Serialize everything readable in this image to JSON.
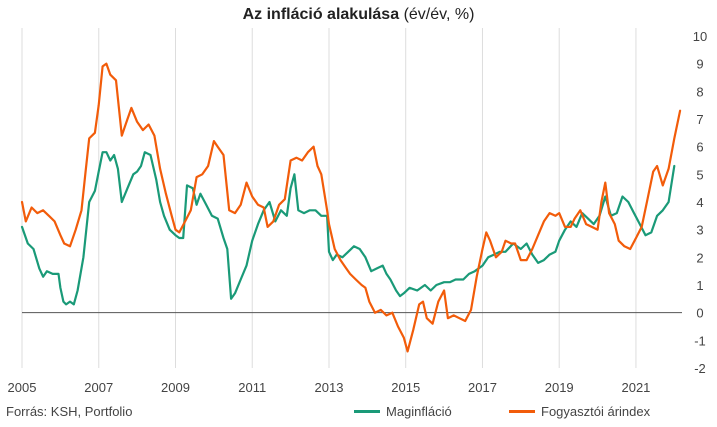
{
  "title": {
    "bold": "Az infláció alakulása",
    "rest": "(év/év, %)"
  },
  "source": "Forrás: KSH, Portfolio",
  "colors": {
    "core": "#1a9a78",
    "cpi": "#f25c0a",
    "zero_line": "#555555",
    "grid": "#dddddd"
  },
  "chart_data": {
    "type": "line",
    "title": "Az infláció alakulása (év/év, %)",
    "xlabel": "",
    "ylabel": "",
    "xlim": [
      2005,
      2022.2
    ],
    "ylim": [
      -2,
      10
    ],
    "x_ticks": [
      "2005",
      "2007",
      "2009",
      "2011",
      "2013",
      "2015",
      "2017",
      "2019",
      "2021"
    ],
    "y_ticks": [
      "10",
      "9",
      "8",
      "7",
      "6",
      "5",
      "4",
      "3",
      "2",
      "1",
      "0",
      "-1",
      "-2"
    ],
    "grid": "vertical",
    "legend_position": "bottom",
    "series": [
      {
        "name": "Maginfláció",
        "color": "#1a9a78",
        "points": [
          [
            2005.0,
            3.1
          ],
          [
            2005.15,
            2.5
          ],
          [
            2005.3,
            2.3
          ],
          [
            2005.45,
            1.6
          ],
          [
            2005.55,
            1.3
          ],
          [
            2005.65,
            1.5
          ],
          [
            2005.8,
            1.4
          ],
          [
            2005.95,
            1.4
          ],
          [
            2006.0,
            0.9
          ],
          [
            2006.08,
            0.4
          ],
          [
            2006.15,
            0.3
          ],
          [
            2006.25,
            0.4
          ],
          [
            2006.35,
            0.3
          ],
          [
            2006.45,
            0.8
          ],
          [
            2006.6,
            2.0
          ],
          [
            2006.75,
            4.0
          ],
          [
            2006.9,
            4.4
          ],
          [
            2007.0,
            5.1
          ],
          [
            2007.1,
            5.8
          ],
          [
            2007.2,
            5.8
          ],
          [
            2007.3,
            5.5
          ],
          [
            2007.4,
            5.7
          ],
          [
            2007.5,
            5.2
          ],
          [
            2007.6,
            4.0
          ],
          [
            2007.75,
            4.5
          ],
          [
            2007.9,
            5.0
          ],
          [
            2008.0,
            5.1
          ],
          [
            2008.1,
            5.3
          ],
          [
            2008.2,
            5.8
          ],
          [
            2008.35,
            5.7
          ],
          [
            2008.5,
            4.8
          ],
          [
            2008.6,
            4.0
          ],
          [
            2008.7,
            3.5
          ],
          [
            2008.85,
            3.0
          ],
          [
            2009.0,
            2.8
          ],
          [
            2009.1,
            2.7
          ],
          [
            2009.2,
            2.7
          ],
          [
            2009.3,
            4.6
          ],
          [
            2009.45,
            4.5
          ],
          [
            2009.55,
            3.9
          ],
          [
            2009.65,
            4.3
          ],
          [
            2009.8,
            3.9
          ],
          [
            2009.95,
            3.5
          ],
          [
            2010.1,
            3.4
          ],
          [
            2010.25,
            2.7
          ],
          [
            2010.35,
            2.3
          ],
          [
            2010.45,
            0.5
          ],
          [
            2010.55,
            0.7
          ],
          [
            2010.7,
            1.2
          ],
          [
            2010.85,
            1.7
          ],
          [
            2011.0,
            2.6
          ],
          [
            2011.15,
            3.2
          ],
          [
            2011.3,
            3.7
          ],
          [
            2011.45,
            4.0
          ],
          [
            2011.6,
            3.3
          ],
          [
            2011.75,
            3.7
          ],
          [
            2011.9,
            3.5
          ],
          [
            2012.0,
            4.5
          ],
          [
            2012.1,
            5.0
          ],
          [
            2012.2,
            3.7
          ],
          [
            2012.35,
            3.6
          ],
          [
            2012.5,
            3.7
          ],
          [
            2012.65,
            3.7
          ],
          [
            2012.8,
            3.5
          ],
          [
            2012.95,
            3.5
          ],
          [
            2013.0,
            2.2
          ],
          [
            2013.1,
            1.9
          ],
          [
            2013.2,
            2.1
          ],
          [
            2013.35,
            2.0
          ],
          [
            2013.5,
            2.2
          ],
          [
            2013.65,
            2.4
          ],
          [
            2013.8,
            2.3
          ],
          [
            2013.95,
            2.0
          ],
          [
            2014.1,
            1.5
          ],
          [
            2014.25,
            1.6
          ],
          [
            2014.4,
            1.7
          ],
          [
            2014.5,
            1.4
          ],
          [
            2014.6,
            1.2
          ],
          [
            2014.75,
            0.8
          ],
          [
            2014.85,
            0.6
          ],
          [
            2014.95,
            0.7
          ],
          [
            2015.1,
            0.9
          ],
          [
            2015.3,
            0.8
          ],
          [
            2015.5,
            1.0
          ],
          [
            2015.65,
            0.8
          ],
          [
            2015.8,
            1.0
          ],
          [
            2016.0,
            1.1
          ],
          [
            2016.15,
            1.1
          ],
          [
            2016.3,
            1.2
          ],
          [
            2016.5,
            1.2
          ],
          [
            2016.65,
            1.4
          ],
          [
            2016.8,
            1.5
          ],
          [
            2017.0,
            1.7
          ],
          [
            2017.15,
            2.0
          ],
          [
            2017.3,
            2.1
          ],
          [
            2017.45,
            2.2
          ],
          [
            2017.6,
            2.2
          ],
          [
            2017.8,
            2.5
          ],
          [
            2018.0,
            2.3
          ],
          [
            2018.15,
            2.5
          ],
          [
            2018.3,
            2.1
          ],
          [
            2018.45,
            1.8
          ],
          [
            2018.6,
            1.9
          ],
          [
            2018.75,
            2.1
          ],
          [
            2018.9,
            2.2
          ],
          [
            2019.0,
            2.6
          ],
          [
            2019.15,
            3.0
          ],
          [
            2019.3,
            3.3
          ],
          [
            2019.45,
            3.1
          ],
          [
            2019.6,
            3.6
          ],
          [
            2019.75,
            3.4
          ],
          [
            2019.9,
            3.2
          ],
          [
            2020.05,
            3.5
          ],
          [
            2020.2,
            4.2
          ],
          [
            2020.35,
            3.5
          ],
          [
            2020.5,
            3.6
          ],
          [
            2020.65,
            4.2
          ],
          [
            2020.8,
            4.0
          ],
          [
            2020.95,
            3.6
          ],
          [
            2021.1,
            3.2
          ],
          [
            2021.25,
            2.8
          ],
          [
            2021.4,
            2.9
          ],
          [
            2021.55,
            3.5
          ],
          [
            2021.7,
            3.7
          ],
          [
            2021.85,
            4.0
          ],
          [
            2022.0,
            5.3
          ]
        ]
      },
      {
        "name": "Fogyasztói árindex",
        "color": "#f25c0a",
        "points": [
          [
            2005.0,
            4.0
          ],
          [
            2005.1,
            3.3
          ],
          [
            2005.25,
            3.8
          ],
          [
            2005.4,
            3.6
          ],
          [
            2005.55,
            3.7
          ],
          [
            2005.7,
            3.5
          ],
          [
            2005.85,
            3.3
          ],
          [
            2006.0,
            2.8
          ],
          [
            2006.1,
            2.5
          ],
          [
            2006.25,
            2.4
          ],
          [
            2006.4,
            3.0
          ],
          [
            2006.55,
            3.7
          ],
          [
            2006.65,
            5.0
          ],
          [
            2006.75,
            6.3
          ],
          [
            2006.9,
            6.5
          ],
          [
            2007.0,
            7.5
          ],
          [
            2007.1,
            8.9
          ],
          [
            2007.2,
            9.0
          ],
          [
            2007.3,
            8.6
          ],
          [
            2007.45,
            8.4
          ],
          [
            2007.6,
            6.4
          ],
          [
            2007.75,
            7.0
          ],
          [
            2007.85,
            7.4
          ],
          [
            2008.0,
            6.9
          ],
          [
            2008.15,
            6.6
          ],
          [
            2008.3,
            6.8
          ],
          [
            2008.45,
            6.4
          ],
          [
            2008.6,
            5.2
          ],
          [
            2008.75,
            4.3
          ],
          [
            2008.9,
            3.5
          ],
          [
            2009.0,
            3.0
          ],
          [
            2009.1,
            2.9
          ],
          [
            2009.25,
            3.3
          ],
          [
            2009.4,
            3.7
          ],
          [
            2009.55,
            4.9
          ],
          [
            2009.7,
            5.0
          ],
          [
            2009.85,
            5.3
          ],
          [
            2010.0,
            6.2
          ],
          [
            2010.1,
            6.0
          ],
          [
            2010.25,
            5.7
          ],
          [
            2010.4,
            3.7
          ],
          [
            2010.55,
            3.6
          ],
          [
            2010.7,
            3.9
          ],
          [
            2010.85,
            4.7
          ],
          [
            2011.0,
            4.2
          ],
          [
            2011.15,
            3.9
          ],
          [
            2011.3,
            3.8
          ],
          [
            2011.4,
            3.1
          ],
          [
            2011.55,
            3.3
          ],
          [
            2011.7,
            3.9
          ],
          [
            2011.85,
            4.1
          ],
          [
            2012.0,
            5.5
          ],
          [
            2012.15,
            5.6
          ],
          [
            2012.3,
            5.5
          ],
          [
            2012.45,
            5.8
          ],
          [
            2012.6,
            6.0
          ],
          [
            2012.7,
            5.3
          ],
          [
            2012.8,
            5.0
          ],
          [
            2012.95,
            3.7
          ],
          [
            2013.0,
            3.2
          ],
          [
            2013.15,
            2.3
          ],
          [
            2013.3,
            1.9
          ],
          [
            2013.45,
            1.6
          ],
          [
            2013.55,
            1.4
          ],
          [
            2013.7,
            1.2
          ],
          [
            2013.85,
            1.0
          ],
          [
            2013.95,
            0.9
          ],
          [
            2014.05,
            0.4
          ],
          [
            2014.2,
            0.0
          ],
          [
            2014.35,
            0.1
          ],
          [
            2014.5,
            -0.1
          ],
          [
            2014.65,
            0.0
          ],
          [
            2014.8,
            -0.5
          ],
          [
            2014.95,
            -0.9
          ],
          [
            2015.05,
            -1.4
          ],
          [
            2015.2,
            -0.6
          ],
          [
            2015.35,
            0.3
          ],
          [
            2015.45,
            0.4
          ],
          [
            2015.55,
            -0.2
          ],
          [
            2015.7,
            -0.4
          ],
          [
            2015.85,
            0.4
          ],
          [
            2016.0,
            0.8
          ],
          [
            2016.1,
            -0.2
          ],
          [
            2016.25,
            -0.1
          ],
          [
            2016.4,
            -0.2
          ],
          [
            2016.55,
            -0.3
          ],
          [
            2016.7,
            0.1
          ],
          [
            2016.85,
            1.3
          ],
          [
            2017.0,
            2.3
          ],
          [
            2017.1,
            2.9
          ],
          [
            2017.2,
            2.6
          ],
          [
            2017.35,
            2.0
          ],
          [
            2017.5,
            2.2
          ],
          [
            2017.6,
            2.6
          ],
          [
            2017.75,
            2.5
          ],
          [
            2017.85,
            2.5
          ],
          [
            2018.0,
            1.9
          ],
          [
            2018.15,
            1.9
          ],
          [
            2018.3,
            2.3
          ],
          [
            2018.45,
            2.8
          ],
          [
            2018.6,
            3.3
          ],
          [
            2018.75,
            3.6
          ],
          [
            2018.9,
            3.5
          ],
          [
            2019.0,
            3.6
          ],
          [
            2019.15,
            3.1
          ],
          [
            2019.3,
            3.1
          ],
          [
            2019.4,
            3.4
          ],
          [
            2019.55,
            3.7
          ],
          [
            2019.7,
            3.2
          ],
          [
            2019.85,
            3.1
          ],
          [
            2020.0,
            3.0
          ],
          [
            2020.1,
            4.0
          ],
          [
            2020.2,
            4.7
          ],
          [
            2020.3,
            3.6
          ],
          [
            2020.45,
            3.2
          ],
          [
            2020.55,
            2.6
          ],
          [
            2020.7,
            2.4
          ],
          [
            2020.85,
            2.3
          ],
          [
            2021.0,
            2.7
          ],
          [
            2021.15,
            3.1
          ],
          [
            2021.3,
            4.1
          ],
          [
            2021.45,
            5.1
          ],
          [
            2021.55,
            5.3
          ],
          [
            2021.7,
            4.6
          ],
          [
            2021.85,
            5.2
          ],
          [
            2022.0,
            6.3
          ],
          [
            2022.15,
            7.3
          ]
        ]
      }
    ]
  }
}
